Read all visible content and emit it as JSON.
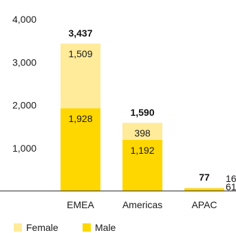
{
  "chart_data": {
    "type": "bar",
    "stacked": true,
    "categories": [
      "EMEA",
      "Americas",
      "APAC"
    ],
    "series": [
      {
        "name": "Male",
        "values": [
          1928,
          1192,
          61
        ],
        "color": "#FFD700"
      },
      {
        "name": "Female",
        "values": [
          1509,
          398,
          16
        ],
        "color": "#FFEB99"
      }
    ],
    "totals": [
      3437,
      1590,
      77
    ],
    "segment_labels": {
      "Male": [
        "1,928",
        "1,192",
        "61"
      ],
      "Female": [
        "1,509",
        "398",
        "16"
      ]
    },
    "total_labels": [
      "3,437",
      "1,590",
      "77"
    ],
    "y_ticks": [
      1000,
      2000,
      3000,
      4000
    ],
    "y_tick_labels": [
      "1,000",
      "2,000",
      "3,000",
      "4,000"
    ],
    "ylim": [
      0,
      4000
    ],
    "grid": false,
    "legend": {
      "position": "bottom-left",
      "entries": [
        "Female",
        "Male"
      ]
    },
    "title": "",
    "xlabel": "",
    "ylabel": ""
  }
}
